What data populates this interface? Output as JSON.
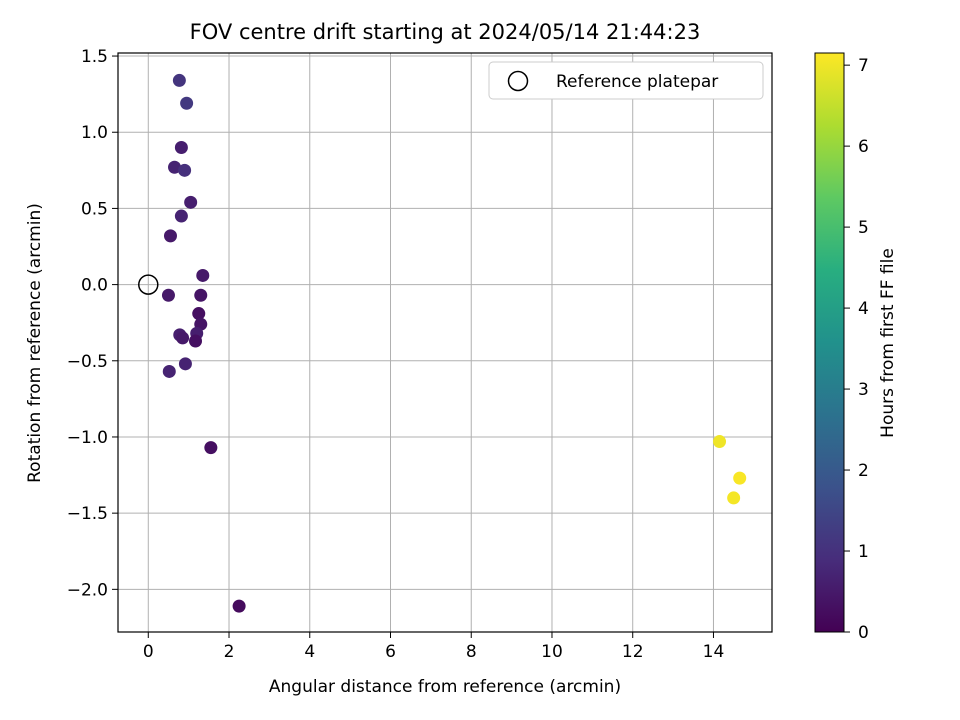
{
  "chart_data": {
    "type": "scatter",
    "title": "FOV centre drift starting at 2024/05/14 21:44:23",
    "xlabel": "Angular distance from reference (arcmin)",
    "ylabel": "Rotation from reference (arcmin)",
    "xlim": [
      -0.75,
      15.45
    ],
    "ylim": [
      -2.28,
      1.52
    ],
    "xticks": [
      "0",
      "2",
      "4",
      "6",
      "8",
      "10",
      "12",
      "14"
    ],
    "yticks": [
      "1.5",
      "1.0",
      "0.5",
      "0.0",
      "−0.5",
      "−1.0",
      "−1.5",
      "−2.0"
    ],
    "grid": true,
    "legend": {
      "position": "top-right",
      "label": "Reference platepar"
    },
    "reference_point": {
      "x": 0,
      "y": 0
    },
    "colorbar": {
      "label": "Hours from first FF file",
      "range": [
        0,
        7.15
      ],
      "ticks": [
        "0",
        "1",
        "2",
        "3",
        "4",
        "5",
        "6",
        "7"
      ],
      "colormap": "viridis"
    },
    "points": [
      {
        "x": 0.77,
        "y": 1.34,
        "hours": 1.1
      },
      {
        "x": 0.95,
        "y": 1.19,
        "hours": 1.2
      },
      {
        "x": 0.82,
        "y": 0.9,
        "hours": 0.6
      },
      {
        "x": 0.65,
        "y": 0.77,
        "hours": 0.7
      },
      {
        "x": 0.9,
        "y": 0.75,
        "hours": 1.0
      },
      {
        "x": 1.05,
        "y": 0.54,
        "hours": 0.6
      },
      {
        "x": 0.82,
        "y": 0.45,
        "hours": 0.7
      },
      {
        "x": 0.55,
        "y": 0.32,
        "hours": 0.5
      },
      {
        "x": 1.35,
        "y": 0.06,
        "hours": 0.5
      },
      {
        "x": 0.5,
        "y": -0.07,
        "hours": 0.5
      },
      {
        "x": 1.3,
        "y": -0.07,
        "hours": 0.4
      },
      {
        "x": 1.25,
        "y": -0.19,
        "hours": 0.3
      },
      {
        "x": 1.3,
        "y": -0.26,
        "hours": 0.4
      },
      {
        "x": 1.2,
        "y": -0.32,
        "hours": 0.6
      },
      {
        "x": 0.78,
        "y": -0.33,
        "hours": 0.6
      },
      {
        "x": 0.85,
        "y": -0.35,
        "hours": 0.5
      },
      {
        "x": 1.17,
        "y": -0.37,
        "hours": 0.3
      },
      {
        "x": 0.92,
        "y": -0.52,
        "hours": 0.7
      },
      {
        "x": 0.52,
        "y": -0.57,
        "hours": 0.7
      },
      {
        "x": 1.55,
        "y": -1.07,
        "hours": 0.3
      },
      {
        "x": 2.25,
        "y": -2.11,
        "hours": 0.2
      },
      {
        "x": 14.15,
        "y": -1.03,
        "hours": 7.0
      },
      {
        "x": 14.65,
        "y": -1.27,
        "hours": 7.1
      },
      {
        "x": 14.5,
        "y": -1.4,
        "hours": 7.05
      }
    ]
  }
}
